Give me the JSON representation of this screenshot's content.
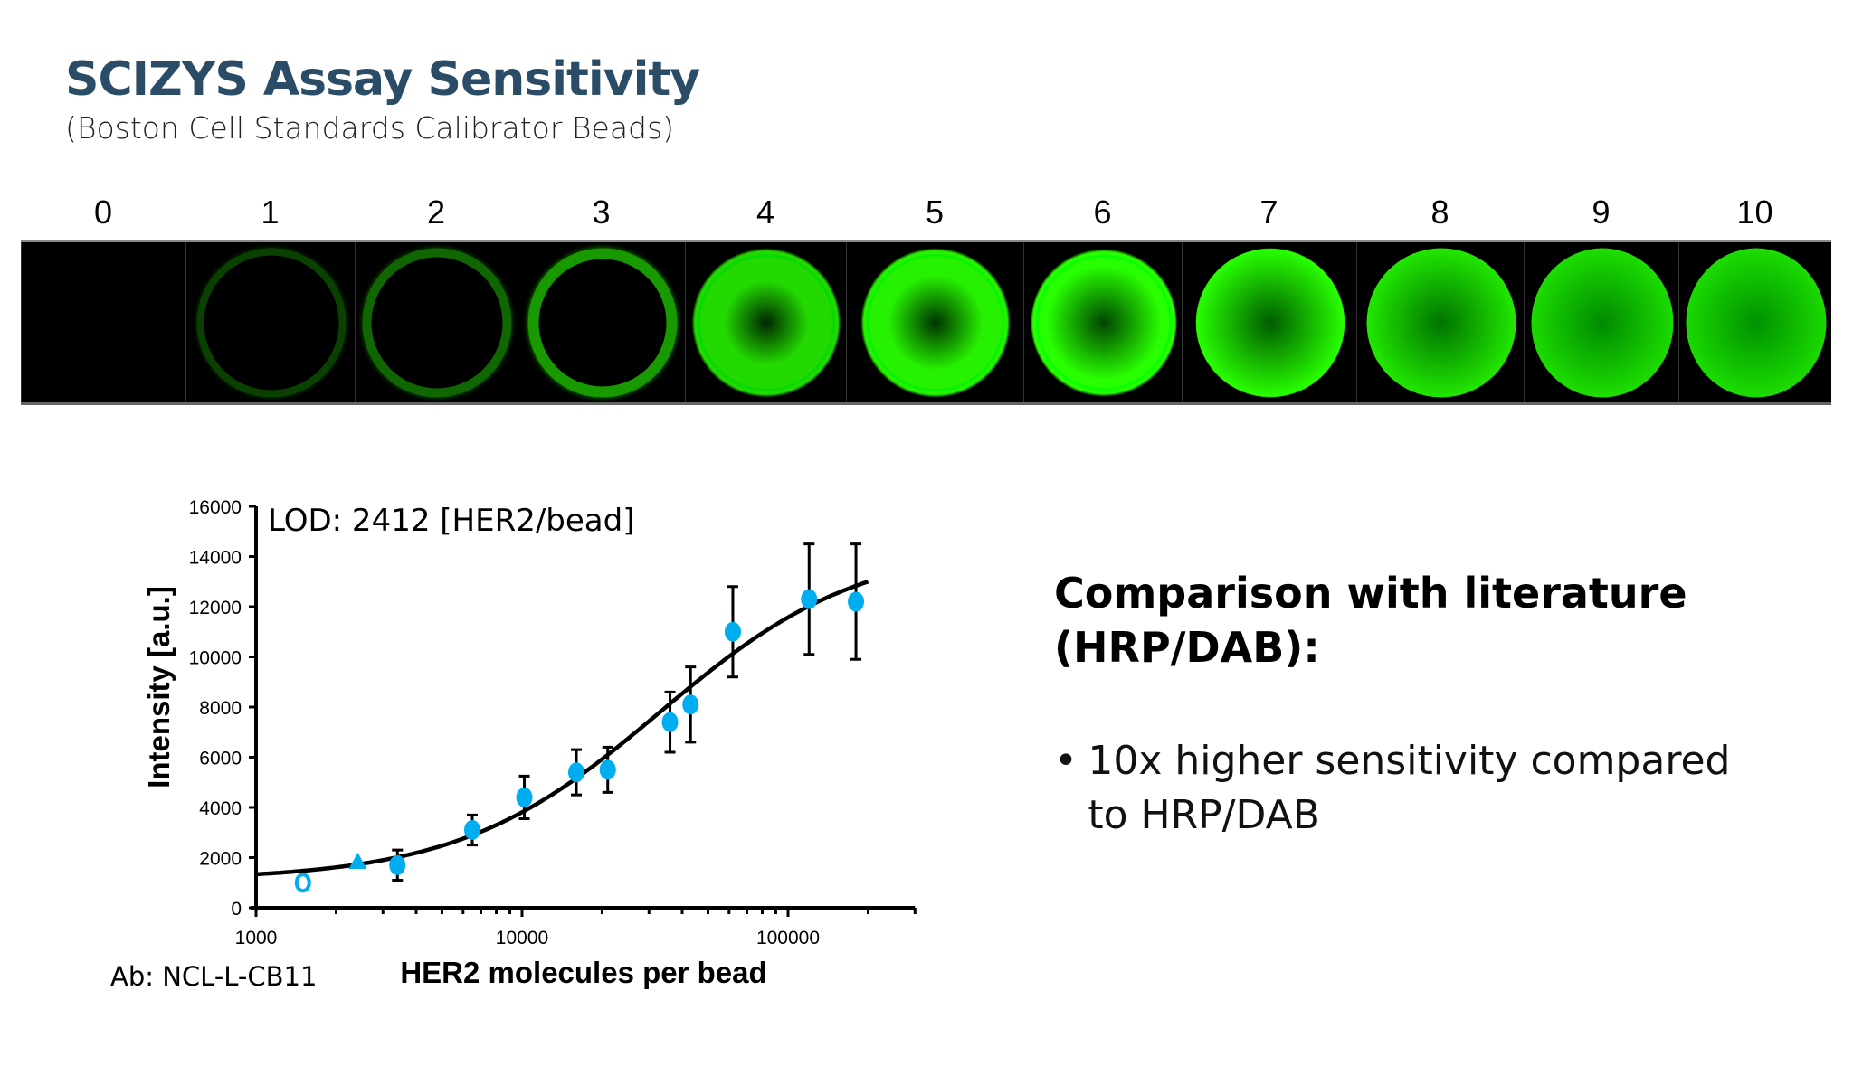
{
  "title": "SCIZYS Assay Sensitivity",
  "subtitle": "(Boston Cell Standards Calibrator Beads)",
  "beads": {
    "labels": [
      "0",
      "1",
      "2",
      "3",
      "4",
      "5",
      "6",
      "7",
      "8",
      "9",
      "10"
    ],
    "brightness": [
      0,
      0.25,
      0.4,
      0.6,
      0.85,
      0.95,
      1,
      1,
      1,
      1,
      1
    ],
    "fill": [
      0,
      0,
      0.05,
      0.15,
      0.3,
      0.35,
      0.45,
      0.6,
      0.75,
      0.9,
      0.95
    ],
    "color": "#33ff00"
  },
  "chart_data": {
    "type": "scatter",
    "title": "LOD: 2412 [HER2/bead]",
    "xlabel": "HER2 molecules per bead",
    "ylabel": "Intensity [a.u.]",
    "xscale": "log",
    "xlim": [
      1000,
      300000
    ],
    "ylim": [
      0,
      16000
    ],
    "xticks": [
      "1000",
      "10000",
      "100000"
    ],
    "yticks": [
      "0",
      "2000",
      "4000",
      "6000",
      "8000",
      "10000",
      "12000",
      "14000",
      "16000"
    ],
    "grid": false,
    "point_color": "#00aeef",
    "points": [
      {
        "x": 1500,
        "y": 1000,
        "err": 0,
        "marker": "open-circle"
      },
      {
        "x": 2412,
        "y": 1800,
        "err": 0,
        "marker": "triangle"
      },
      {
        "x": 3400,
        "y": 1700,
        "err": 600,
        "marker": "circle"
      },
      {
        "x": 6500,
        "y": 3100,
        "err": 600,
        "marker": "circle"
      },
      {
        "x": 10200,
        "y": 4400,
        "err": 850,
        "marker": "circle"
      },
      {
        "x": 16000,
        "y": 5400,
        "err": 900,
        "marker": "circle"
      },
      {
        "x": 21000,
        "y": 5500,
        "err": 900,
        "marker": "circle"
      },
      {
        "x": 36000,
        "y": 7400,
        "err": 1200,
        "marker": "circle"
      },
      {
        "x": 43000,
        "y": 8100,
        "err": 1500,
        "marker": "circle"
      },
      {
        "x": 62000,
        "y": 11000,
        "err": 1800,
        "marker": "circle"
      },
      {
        "x": 120000,
        "y": 12300,
        "err": 2200,
        "marker": "circle"
      },
      {
        "x": 180000,
        "y": 12200,
        "err": 2300,
        "marker": "circle"
      }
    ],
    "fit": {
      "model": "4PL",
      "bottom": 1100,
      "top": 14500,
      "ec50": 33000,
      "hill": 1.15,
      "xrange": [
        1000,
        200000
      ]
    },
    "annotation": "Ab: NCL-L-CB11"
  },
  "comparison": {
    "heading": "Comparison with literature (HRP/DAB):",
    "bullets": [
      "10x higher sensitivity compared to HRP/DAB"
    ]
  }
}
